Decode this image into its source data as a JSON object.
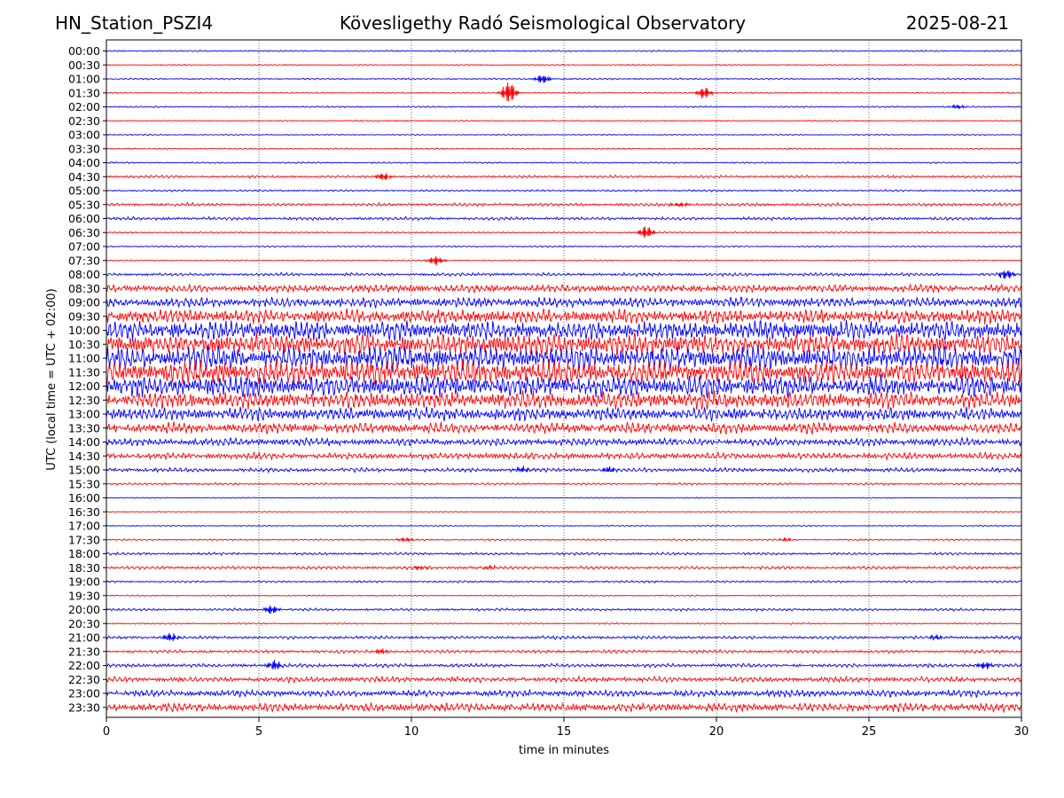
{
  "chart_data": {
    "type": "line",
    "title": "Kövesligethy Radó Seismological Observatory",
    "station": "HN_Station_PSZI4",
    "date": "2025-08-21",
    "xlabel": "time in minutes",
    "ylabel": "UTC (local time = UTC + 02:00)",
    "xlim": [
      0,
      30
    ],
    "x_ticks": [
      "0",
      "5",
      "10",
      "15",
      "20",
      "25",
      "30"
    ],
    "grid": "vertical dotted at 5-minute intervals",
    "trace_colors": [
      "#0000ff",
      "#ff0000"
    ],
    "rows": [
      {
        "label": "00:00",
        "level": 0.15,
        "events": []
      },
      {
        "label": "00:30",
        "level": 0.12,
        "events": []
      },
      {
        "label": "01:00",
        "level": 0.15,
        "events": [
          {
            "t": 14.3,
            "amp": 1.0
          }
        ]
      },
      {
        "label": "01:30",
        "level": 0.12,
        "events": [
          {
            "t": 13.2,
            "amp": 2.3
          },
          {
            "t": 19.6,
            "amp": 1.2
          }
        ]
      },
      {
        "label": "02:00",
        "level": 0.15,
        "events": [
          {
            "t": 27.9,
            "amp": 0.4
          }
        ]
      },
      {
        "label": "02:30",
        "level": 0.12,
        "events": []
      },
      {
        "label": "03:00",
        "level": 0.12,
        "events": []
      },
      {
        "label": "03:30",
        "level": 0.12,
        "events": []
      },
      {
        "label": "04:00",
        "level": 0.15,
        "events": []
      },
      {
        "label": "04:30",
        "level": 0.25,
        "events": [
          {
            "t": 9.1,
            "amp": 0.8
          }
        ]
      },
      {
        "label": "05:00",
        "level": 0.18,
        "events": []
      },
      {
        "label": "05:30",
        "level": 0.3,
        "events": [
          {
            "t": 18.8,
            "amp": 0.5
          }
        ]
      },
      {
        "label": "06:00",
        "level": 0.3,
        "events": []
      },
      {
        "label": "06:30",
        "level": 0.15,
        "events": [
          {
            "t": 17.7,
            "amp": 1.3
          }
        ]
      },
      {
        "label": "07:00",
        "level": 0.15,
        "events": []
      },
      {
        "label": "07:30",
        "level": 0.12,
        "events": [
          {
            "t": 10.8,
            "amp": 1.0
          }
        ]
      },
      {
        "label": "08:00",
        "level": 0.3,
        "events": [
          {
            "t": 29.5,
            "amp": 1.0
          }
        ]
      },
      {
        "label": "08:30",
        "level": 0.7,
        "events": []
      },
      {
        "label": "09:00",
        "level": 0.9,
        "events": []
      },
      {
        "label": "09:30",
        "level": 1.3,
        "events": []
      },
      {
        "label": "10:00",
        "level": 1.8,
        "events": []
      },
      {
        "label": "10:30",
        "level": 2.0,
        "events": []
      },
      {
        "label": "11:00",
        "level": 2.2,
        "events": []
      },
      {
        "label": "11:30",
        "level": 2.2,
        "events": []
      },
      {
        "label": "12:00",
        "level": 2.0,
        "events": []
      },
      {
        "label": "12:30",
        "level": 1.6,
        "events": []
      },
      {
        "label": "13:00",
        "level": 1.2,
        "events": []
      },
      {
        "label": "13:30",
        "level": 1.0,
        "events": []
      },
      {
        "label": "14:00",
        "level": 0.7,
        "events": []
      },
      {
        "label": "14:30",
        "level": 0.6,
        "events": []
      },
      {
        "label": "15:00",
        "level": 0.4,
        "events": [
          {
            "t": 13.6,
            "amp": 0.6
          },
          {
            "t": 16.5,
            "amp": 0.6
          }
        ]
      },
      {
        "label": "15:30",
        "level": 0.2,
        "events": []
      },
      {
        "label": "16:00",
        "level": 0.1,
        "events": []
      },
      {
        "label": "16:30",
        "level": 0.1,
        "events": []
      },
      {
        "label": "17:00",
        "level": 0.12,
        "events": []
      },
      {
        "label": "17:30",
        "level": 0.15,
        "events": [
          {
            "t": 9.8,
            "amp": 0.4
          },
          {
            "t": 22.3,
            "amp": 0.3
          }
        ]
      },
      {
        "label": "18:00",
        "level": 0.25,
        "events": []
      },
      {
        "label": "18:30",
        "level": 0.3,
        "events": [
          {
            "t": 10.3,
            "amp": 0.4
          },
          {
            "t": 12.6,
            "amp": 0.4
          }
        ]
      },
      {
        "label": "19:00",
        "level": 0.2,
        "events": []
      },
      {
        "label": "19:30",
        "level": 0.12,
        "events": []
      },
      {
        "label": "20:00",
        "level": 0.25,
        "events": [
          {
            "t": 5.4,
            "amp": 0.9
          }
        ]
      },
      {
        "label": "20:30",
        "level": 0.15,
        "events": []
      },
      {
        "label": "21:00",
        "level": 0.3,
        "events": [
          {
            "t": 2.1,
            "amp": 0.9
          },
          {
            "t": 27.2,
            "amp": 0.5
          }
        ]
      },
      {
        "label": "21:30",
        "level": 0.3,
        "events": [
          {
            "t": 9.0,
            "amp": 0.5
          }
        ]
      },
      {
        "label": "22:00",
        "level": 0.35,
        "events": [
          {
            "t": 5.5,
            "amp": 1.0
          },
          {
            "t": 28.8,
            "amp": 0.8
          }
        ]
      },
      {
        "label": "22:30",
        "level": 0.5,
        "events": []
      },
      {
        "label": "23:00",
        "level": 0.65,
        "events": []
      },
      {
        "label": "23:30",
        "level": 0.8,
        "events": []
      }
    ]
  }
}
